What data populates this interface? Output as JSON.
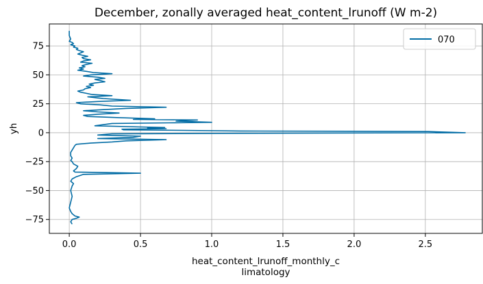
{
  "chart_data": {
    "type": "line",
    "title": "December, zonally averaged heat_content_lrunoff (W m-2)",
    "xlabel_lines": [
      "heat_content_lrunoff_monthly_c",
      "limatology"
    ],
    "ylabel": "yh",
    "xlim": [
      -0.14,
      2.9
    ],
    "ylim": [
      -87,
      94
    ],
    "xticks": [
      0.0,
      0.5,
      1.0,
      1.5,
      2.0,
      2.5
    ],
    "xtick_labels": [
      "0.0",
      "0.5",
      "1.0",
      "1.5",
      "2.0",
      "2.5"
    ],
    "yticks": [
      -75,
      -50,
      -25,
      0,
      25,
      50,
      75
    ],
    "ytick_labels": [
      "−75",
      "−50",
      "−25",
      "0",
      "25",
      "50",
      "75"
    ],
    "grid": true,
    "legend": "top-right",
    "series": [
      {
        "name": "070",
        "color": "#006ba4",
        "points": [
          [
            0.0,
            88
          ],
          [
            0.0,
            84
          ],
          [
            0.01,
            81
          ],
          [
            0.0,
            79
          ],
          [
            0.02,
            78
          ],
          [
            0.03,
            77
          ],
          [
            0.01,
            76
          ],
          [
            0.04,
            75
          ],
          [
            0.03,
            74
          ],
          [
            0.06,
            73
          ],
          [
            0.05,
            72
          ],
          [
            0.07,
            71
          ],
          [
            0.1,
            70
          ],
          [
            0.08,
            69
          ],
          [
            0.06,
            68
          ],
          [
            0.09,
            67
          ],
          [
            0.13,
            66
          ],
          [
            0.09,
            65
          ],
          [
            0.1,
            64
          ],
          [
            0.15,
            63
          ],
          [
            0.1,
            62
          ],
          [
            0.08,
            61
          ],
          [
            0.16,
            60
          ],
          [
            0.12,
            59
          ],
          [
            0.09,
            58
          ],
          [
            0.11,
            57
          ],
          [
            0.07,
            56
          ],
          [
            0.1,
            55
          ],
          [
            0.06,
            54
          ],
          [
            0.12,
            53
          ],
          [
            0.17,
            52
          ],
          [
            0.3,
            51
          ],
          [
            0.15,
            50
          ],
          [
            0.1,
            49
          ],
          [
            0.2,
            48
          ],
          [
            0.25,
            47
          ],
          [
            0.18,
            46
          ],
          [
            0.22,
            45
          ],
          [
            0.25,
            44
          ],
          [
            0.18,
            43
          ],
          [
            0.14,
            42
          ],
          [
            0.17,
            41
          ],
          [
            0.12,
            40
          ],
          [
            0.15,
            39
          ],
          [
            0.11,
            38
          ],
          [
            0.1,
            37
          ],
          [
            0.06,
            36
          ],
          [
            0.08,
            35
          ],
          [
            0.12,
            34
          ],
          [
            0.16,
            33
          ],
          [
            0.3,
            32
          ],
          [
            0.13,
            31
          ],
          [
            0.2,
            30
          ],
          [
            0.24,
            29.5
          ],
          [
            0.43,
            28
          ],
          [
            0.2,
            27
          ],
          [
            0.05,
            26
          ],
          [
            0.08,
            25
          ],
          [
            0.22,
            24
          ],
          [
            0.3,
            23
          ],
          [
            0.68,
            22
          ],
          [
            0.4,
            21
          ],
          [
            0.25,
            20
          ],
          [
            0.1,
            19
          ],
          [
            0.2,
            18
          ],
          [
            0.35,
            17
          ],
          [
            0.2,
            16
          ],
          [
            0.1,
            15
          ],
          [
            0.13,
            14
          ],
          [
            0.35,
            13
          ],
          [
            0.6,
            12
          ],
          [
            0.45,
            11.5
          ],
          [
            0.9,
            11
          ],
          [
            0.75,
            10
          ],
          [
            1.0,
            9
          ],
          [
            0.7,
            8.5
          ],
          [
            0.3,
            8
          ],
          [
            0.18,
            6
          ],
          [
            0.5,
            5
          ],
          [
            0.67,
            4.5
          ],
          [
            0.55,
            4
          ],
          [
            0.68,
            3.5
          ],
          [
            0.37,
            3
          ],
          [
            0.38,
            2.5
          ],
          [
            0.8,
            2
          ],
          [
            1.2,
            1.5
          ],
          [
            2.52,
            1
          ],
          [
            2.78,
            0
          ],
          [
            1.1,
            -0.5
          ],
          [
            0.3,
            -1
          ],
          [
            0.2,
            -2
          ],
          [
            0.5,
            -3
          ],
          [
            0.45,
            -4
          ],
          [
            0.2,
            -5
          ],
          [
            0.68,
            -6
          ],
          [
            0.4,
            -7
          ],
          [
            0.3,
            -8
          ],
          [
            0.15,
            -9
          ],
          [
            0.05,
            -10
          ],
          [
            0.04,
            -11
          ],
          [
            0.03,
            -13
          ],
          [
            0.02,
            -15
          ],
          [
            0.01,
            -17
          ],
          [
            0.01,
            -20
          ],
          [
            0.02,
            -22
          ],
          [
            0.01,
            -24
          ],
          [
            0.02,
            -25
          ],
          [
            0.03,
            -27
          ],
          [
            0.06,
            -29
          ],
          [
            0.05,
            -31
          ],
          [
            0.03,
            -33
          ],
          [
            0.04,
            -34
          ],
          [
            0.5,
            -35
          ],
          [
            0.1,
            -36
          ],
          [
            0.05,
            -38
          ],
          [
            0.02,
            -40
          ],
          [
            0.01,
            -42
          ],
          [
            0.03,
            -44
          ],
          [
            0.02,
            -46
          ],
          [
            0.01,
            -50
          ],
          [
            0.02,
            -55
          ],
          [
            0.01,
            -60
          ],
          [
            0.0,
            -65
          ],
          [
            0.01,
            -68
          ],
          [
            0.02,
            -70
          ],
          [
            0.04,
            -72
          ],
          [
            0.07,
            -73
          ],
          [
            0.05,
            -74
          ],
          [
            0.02,
            -75
          ],
          [
            0.01,
            -77
          ],
          [
            0.02,
            -79
          ]
        ]
      }
    ]
  }
}
